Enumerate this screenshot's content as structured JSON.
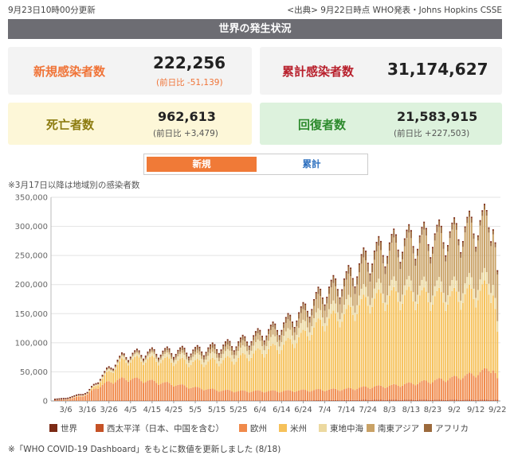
{
  "header": {
    "updated": "9月23日10時00分更新",
    "source": "<出典> 9月22日時点 WHO発表・Johns Hopkins CSSE"
  },
  "banner": {
    "title": "世界の発生状況"
  },
  "stats": {
    "new_cases": {
      "label": "新規感染者数",
      "value": "222,256",
      "delta": "(前日比 -51,139)"
    },
    "total_cases": {
      "label": "累計感染者数",
      "value": "31,174,627"
    },
    "deaths": {
      "label": "死亡者数",
      "value": "962,613",
      "delta": "(前日比 +3,479)"
    },
    "recovered": {
      "label": "回復者数",
      "value": "21,583,915",
      "delta": "(前日比 +227,503)"
    }
  },
  "toggle": {
    "new_label": "新規",
    "total_label": "累計",
    "selected": "新規"
  },
  "notes": {
    "chart_note": "※3月17日以降は地域別の感染者数",
    "footer": "※「WHO COVID-19 Dashboard」をもとに数値を更新しました (8/18)"
  },
  "colors": {
    "accent_orange": "#f07438",
    "total_red": "#b8202c",
    "death_olive": "#8c7b0f",
    "recovered_green": "#2c8a2c"
  },
  "chart_data": {
    "type": "bar",
    "stacked": true,
    "ylim": [
      0,
      350000
    ],
    "yticks": [
      0,
      50000,
      100000,
      150000,
      200000,
      250000,
      300000,
      350000
    ],
    "ytick_labels": [
      "0",
      "50,000",
      "100,000",
      "150,000",
      "200,000",
      "250,000",
      "300,000",
      "350,000"
    ],
    "x_start": "3/1",
    "x_end": "9/22",
    "xtick_labels": [
      "3/6",
      "3/16",
      "3/26",
      "4/5",
      "4/15",
      "4/25",
      "5/5",
      "5/15",
      "5/25",
      "6/4",
      "6/14",
      "6/24",
      "7/4",
      "7/14",
      "7/24",
      "8/3",
      "8/13",
      "8/23",
      "9/2",
      "9/12",
      "9/22"
    ],
    "grid": true,
    "legend_position": "bottom",
    "series": [
      {
        "name": "世界",
        "color": "#7b2a15"
      },
      {
        "name": "西太平洋（日本、中国を含む）",
        "color": "#c55226"
      },
      {
        "name": "欧州",
        "color": "#f08a4b"
      },
      {
        "name": "米州",
        "color": "#f6c15a"
      },
      {
        "name": "東地中海",
        "color": "#ecd9a0"
      },
      {
        "name": "南東アジア",
        "color": "#c9a266"
      },
      {
        "name": "アフリカ",
        "color": "#9c6a3c"
      }
    ],
    "anchors": [
      {
        "date": "3/1",
        "total": 1500,
        "wp": 1200,
        "eu": 200,
        "am": 50,
        "em": 50,
        "sea": 0,
        "af": 0
      },
      {
        "date": "3/6",
        "total": 2800,
        "wp": 300,
        "eu": 1800,
        "am": 200,
        "em": 500,
        "sea": 0,
        "af": 0
      },
      {
        "date": "3/12",
        "total": 9000,
        "wp": 300,
        "eu": 7000,
        "am": 700,
        "em": 1000,
        "sea": 0,
        "af": 0
      },
      {
        "date": "3/16",
        "total": 13000,
        "wp": 0,
        "eu": 11000,
        "am": 1000,
        "em": 1000,
        "sea": 0,
        "af": 0
      },
      {
        "date": "3/20",
        "total": 30000,
        "wp": 500,
        "eu": 22000,
        "am": 5000,
        "em": 1500,
        "sea": 500,
        "af": 500
      },
      {
        "date": "3/26",
        "total": 55000,
        "wp": 600,
        "eu": 32000,
        "am": 17000,
        "em": 3000,
        "sea": 1200,
        "af": 1200
      },
      {
        "date": "4/1",
        "total": 75000,
        "wp": 700,
        "eu": 37000,
        "am": 30000,
        "em": 4000,
        "sea": 1500,
        "af": 1800
      },
      {
        "date": "4/5",
        "total": 80000,
        "wp": 700,
        "eu": 38000,
        "am": 33000,
        "em": 4500,
        "sea": 1800,
        "af": 2000
      },
      {
        "date": "4/15",
        "total": 83000,
        "wp": 800,
        "eu": 33000,
        "am": 38000,
        "em": 5500,
        "sea": 3000,
        "af": 2700
      },
      {
        "date": "4/25",
        "total": 85000,
        "wp": 800,
        "eu": 28000,
        "am": 41000,
        "em": 7000,
        "sea": 4000,
        "af": 4200
      },
      {
        "date": "5/5",
        "total": 86000,
        "wp": 800,
        "eu": 22000,
        "am": 44000,
        "em": 9000,
        "sea": 5000,
        "af": 5200
      },
      {
        "date": "5/15",
        "total": 92000,
        "wp": 800,
        "eu": 18000,
        "am": 50000,
        "em": 10000,
        "sea": 7000,
        "af": 6200
      },
      {
        "date": "5/25",
        "total": 100000,
        "wp": 900,
        "eu": 16000,
        "am": 57000,
        "em": 12000,
        "sea": 8000,
        "af": 6100
      },
      {
        "date": "6/4",
        "total": 115000,
        "wp": 1000,
        "eu": 16000,
        "am": 68000,
        "em": 14000,
        "sea": 10000,
        "af": 6000
      },
      {
        "date": "6/14",
        "total": 130000,
        "wp": 1000,
        "eu": 16000,
        "am": 78000,
        "em": 15000,
        "sea": 13000,
        "af": 7000
      },
      {
        "date": "6/24",
        "total": 155000,
        "wp": 1200,
        "eu": 17000,
        "am": 95000,
        "em": 16000,
        "sea": 17000,
        "af": 8800
      },
      {
        "date": "7/4",
        "total": 190000,
        "wp": 1300,
        "eu": 18000,
        "am": 120000,
        "em": 16000,
        "sea": 25000,
        "af": 9700
      },
      {
        "date": "7/14",
        "total": 210000,
        "wp": 1500,
        "eu": 19000,
        "am": 130000,
        "em": 16000,
        "sea": 32000,
        "af": 11500
      },
      {
        "date": "7/24",
        "total": 250000,
        "wp": 2000,
        "eu": 22000,
        "am": 150000,
        "em": 17000,
        "sea": 45000,
        "af": 14000
      },
      {
        "date": "8/3",
        "total": 270000,
        "wp": 2000,
        "eu": 24000,
        "am": 155000,
        "em": 17000,
        "sea": 60000,
        "af": 12000
      },
      {
        "date": "8/13",
        "total": 280000,
        "wp": 2000,
        "eu": 28000,
        "am": 152000,
        "em": 17000,
        "sea": 70000,
        "af": 11000
      },
      {
        "date": "8/23",
        "total": 285000,
        "wp": 2000,
        "eu": 33000,
        "am": 145000,
        "em": 17000,
        "sea": 78000,
        "af": 10000
      },
      {
        "date": "9/2",
        "total": 290000,
        "wp": 2000,
        "eu": 38000,
        "am": 140000,
        "em": 18000,
        "sea": 83000,
        "af": 9000
      },
      {
        "date": "9/12",
        "total": 305000,
        "wp": 2000,
        "eu": 45000,
        "am": 140000,
        "em": 19000,
        "sea": 92000,
        "af": 7000
      },
      {
        "date": "9/20",
        "total": 318000,
        "wp": 2000,
        "eu": 55000,
        "am": 140000,
        "em": 20000,
        "sea": 94000,
        "af": 7000
      },
      {
        "date": "9/22",
        "total": 222256,
        "wp": 2000,
        "eu": 37000,
        "am": 80000,
        "em": 18000,
        "sea": 80000,
        "af": 5256
      }
    ]
  }
}
